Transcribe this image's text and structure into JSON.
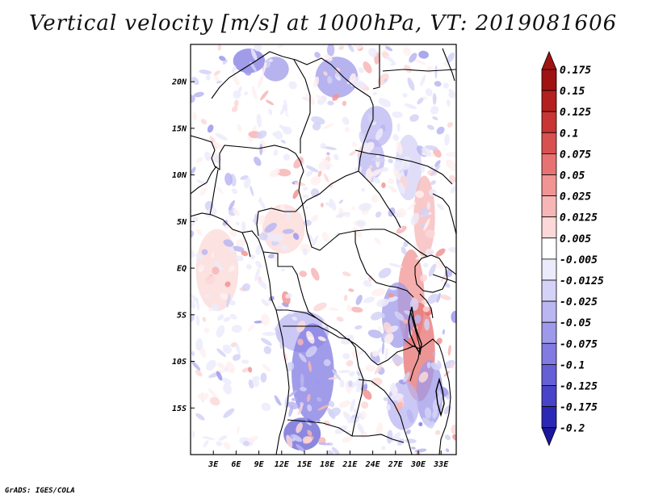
{
  "title": "Vertical velocity [m/s] at 1000hPa, VT: 2019081606",
  "credit": "GrADS: IGES/COLA",
  "colors": {
    "positive": [
      "#fff0f0",
      "#fcd8d8",
      "#f7b6b6",
      "#f19494",
      "#e77272",
      "#d85050",
      "#c93434",
      "#b41f1f",
      "#a01313"
    ],
    "negative": [
      "#ecebfb",
      "#d4d2f6",
      "#bab6f1",
      "#9e99ea",
      "#827be2",
      "#6560d6",
      "#4843c8",
      "#2c28b6",
      "#1b17a0"
    ],
    "zero": "#ffffff"
  },
  "chart_data": {
    "type": "heatmap",
    "title": "Vertical velocity [m/s] at 1000hPa, VT: 2019081606",
    "variable": "Vertical velocity",
    "units": "m/s",
    "level": "1000hPa",
    "valid_time": "2019081606",
    "x_ticks": [
      "3E",
      "6E",
      "9E",
      "12E",
      "15E",
      "18E",
      "21E",
      "24E",
      "27E",
      "30E",
      "33E"
    ],
    "y_ticks": [
      "20N",
      "15N",
      "10N",
      "5N",
      "EQ",
      "5S",
      "10S",
      "15S"
    ],
    "colorbar_levels": [
      "0.175",
      "0.15",
      "0.125",
      "0.1",
      "0.075",
      "0.05",
      "0.025",
      "0.0125",
      "0.005",
      "-0.005",
      "-0.0125",
      "-0.025",
      "-0.05",
      "-0.075",
      "-0.1",
      "-0.125",
      "-0.175",
      "-0.2"
    ],
    "lon_range": [
      0,
      35
    ],
    "lat_range": [
      -20,
      24
    ],
    "grid": false
  }
}
